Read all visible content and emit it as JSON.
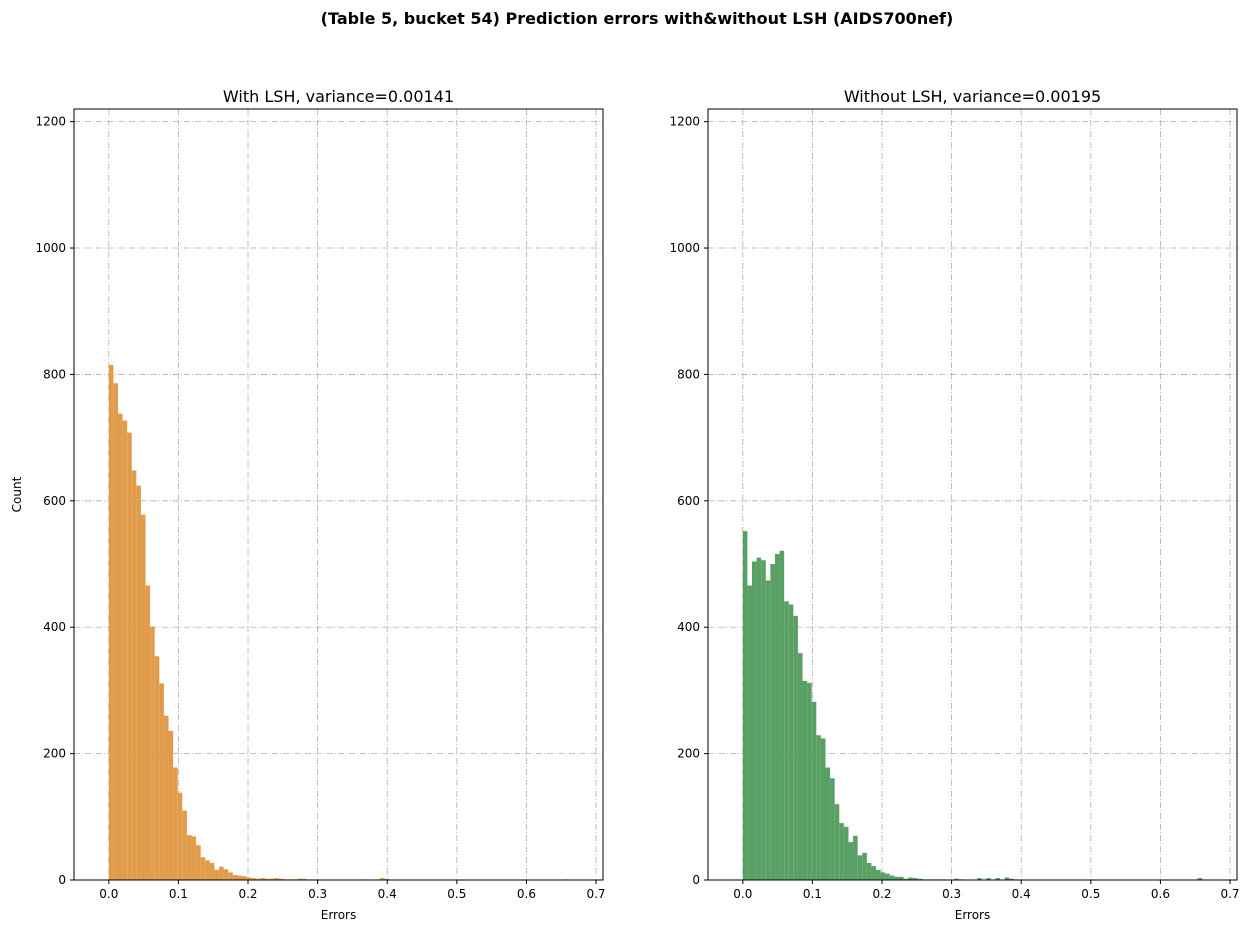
{
  "figure": {
    "suptitle": "(Table 5, bucket 54) Prediction errors with&without LSH (AIDS700nef)"
  },
  "chart_data": [
    {
      "type": "bar",
      "title": "With LSH, variance=0.00141",
      "xlabel": "Errors",
      "ylabel": "Count",
      "xlim": [
        -0.05,
        0.71
      ],
      "ylim": [
        0,
        1220
      ],
      "xticks": [
        "0.0",
        "0.1",
        "0.2",
        "0.3",
        "0.4",
        "0.5",
        "0.6",
        "0.7"
      ],
      "yticks": [
        "0",
        "200",
        "400",
        "600",
        "800",
        "1000",
        "1200"
      ],
      "grid": true,
      "color": "#e09c4b",
      "bin_start": 0.0,
      "bin_width": 0.0066,
      "values": [
        815,
        786,
        738,
        727,
        708,
        648,
        624,
        578,
        466,
        401,
        354,
        311,
        260,
        236,
        178,
        138,
        110,
        71,
        69,
        55,
        36,
        31,
        27,
        16,
        21,
        17,
        12,
        8,
        7,
        6,
        4,
        3,
        2,
        3,
        2,
        2,
        3,
        2,
        1,
        1,
        1,
        2,
        2,
        1,
        1,
        1,
        0,
        0,
        0,
        0,
        0,
        0,
        0,
        0,
        0,
        1,
        0,
        0,
        1,
        3,
        2,
        0,
        0,
        0,
        0,
        0,
        0,
        0,
        0,
        0,
        0,
        0,
        0,
        0,
        0,
        0,
        0,
        0,
        0,
        0,
        0,
        0,
        0,
        0,
        0,
        0,
        0,
        0,
        0,
        0,
        0,
        0,
        0,
        0,
        0,
        0,
        0,
        0,
        0,
        1
      ]
    },
    {
      "type": "bar",
      "title": "Without LSH, variance=0.00195",
      "xlabel": "Errors",
      "ylabel": "",
      "xlim": [
        -0.05,
        0.71
      ],
      "ylim": [
        0,
        1220
      ],
      "xticks": [
        "0.0",
        "0.1",
        "0.2",
        "0.3",
        "0.4",
        "0.5",
        "0.6",
        "0.7"
      ],
      "yticks": [
        "0",
        "200",
        "400",
        "600",
        "800",
        "1000",
        "1200"
      ],
      "grid": true,
      "color": "#59a065",
      "bin_start": 0.0,
      "bin_width": 0.0066,
      "values": [
        552,
        466,
        504,
        510,
        506,
        474,
        500,
        516,
        521,
        441,
        436,
        418,
        359,
        315,
        312,
        282,
        229,
        224,
        178,
        161,
        120,
        90,
        84,
        60,
        70,
        39,
        43,
        27,
        22,
        16,
        12,
        10,
        7,
        5,
        5,
        2,
        4,
        3,
        2,
        1,
        1,
        1,
        1,
        1,
        0,
        0,
        2,
        1,
        0,
        0,
        0,
        3,
        0,
        3,
        0,
        3,
        0,
        4,
        2,
        1,
        0,
        0,
        0,
        0,
        0,
        0,
        0,
        0,
        0,
        0,
        0,
        0,
        0,
        0,
        0,
        0,
        0,
        0,
        0,
        0,
        0,
        0,
        0,
        0,
        0,
        0,
        0,
        0,
        0,
        0,
        0,
        0,
        0,
        0,
        0,
        0,
        0,
        0,
        0,
        3
      ]
    }
  ]
}
